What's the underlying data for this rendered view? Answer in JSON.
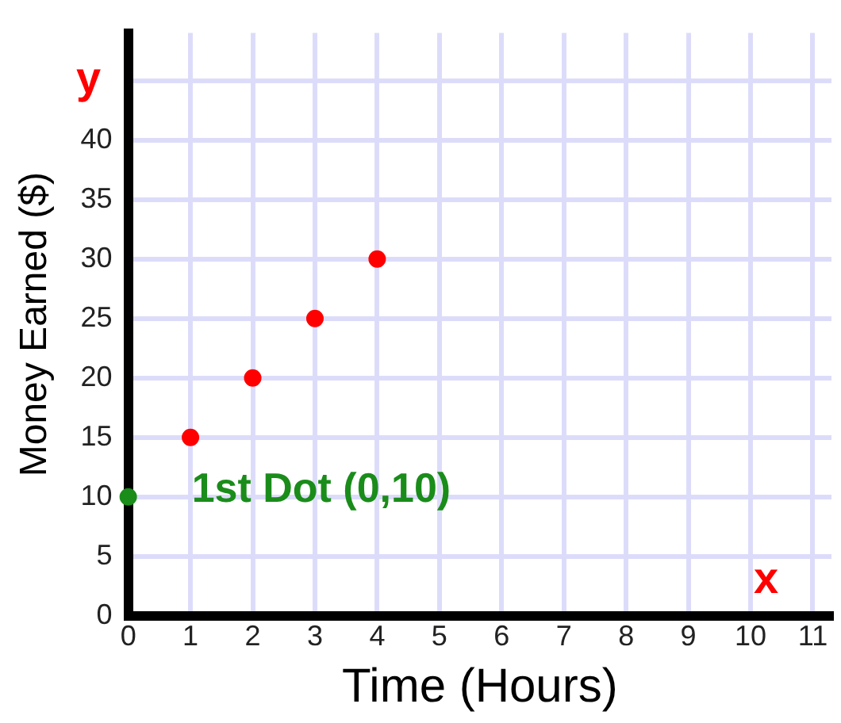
{
  "chart_data": {
    "type": "scatter",
    "xlabel": "Time (Hours)",
    "ylabel": "Money Earned ($)",
    "x": [
      1,
      2,
      3,
      4
    ],
    "series": [
      {
        "color": "#ff0000",
        "values": [
          15,
          20,
          25,
          30
        ]
      },
      {
        "color": "#1a8c1a",
        "x": [
          0
        ],
        "values": [
          10
        ]
      }
    ],
    "xlim": [
      0,
      11.3
    ],
    "xticks": [
      0,
      1,
      2,
      3,
      4,
      5,
      6,
      7,
      8,
      9,
      10,
      11
    ],
    "ylim": [
      0,
      49
    ],
    "yticks": [
      0,
      5,
      10,
      15,
      20,
      25,
      30,
      35,
      40,
      {
        "value": 45,
        "label": null
      }
    ],
    "grid": true,
    "legend": false,
    "marker": "circle",
    "annotations": [
      "y",
      "x",
      {
        "text": "1st Dot (0,10)",
        "x": 0,
        "y": 10
      }
    ]
  }
}
